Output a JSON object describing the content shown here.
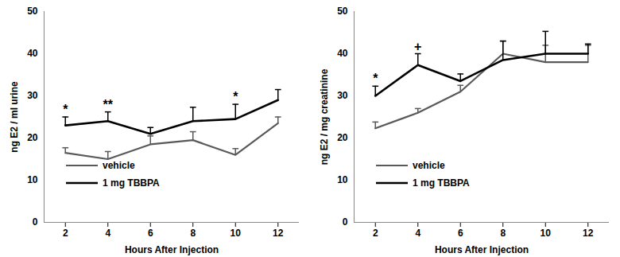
{
  "chart_data": [
    {
      "type": "line",
      "x": [
        2,
        4,
        6,
        8,
        10,
        12
      ],
      "xlabel": "Hours After Injection",
      "ylabel": "ng E2 / ml urine",
      "xlim": [
        1,
        13
      ],
      "xticks": [
        2,
        4,
        6,
        8,
        10,
        12
      ],
      "ylim": [
        0,
        50
      ],
      "yticks": [
        0,
        10,
        20,
        30,
        40,
        50
      ],
      "legend": "lower left",
      "series": [
        {
          "name": "vehicle",
          "color": "#595959",
          "line_style": "solid",
          "values": [
            16.5,
            15,
            18.5,
            19.5,
            16,
            23.5
          ],
          "error": [
            1.2,
            1.8,
            2.0,
            2.0,
            1.5,
            1.5
          ]
        },
        {
          "name": "1 mg TBBPA",
          "color": "#000000",
          "line_style": "solid",
          "values": [
            23,
            24,
            21,
            24,
            24.5,
            29
          ],
          "error": [
            2.0,
            2.2,
            1.5,
            3.3,
            3.5,
            2.5
          ]
        }
      ],
      "annotations": [
        {
          "x": 2,
          "text": "*"
        },
        {
          "x": 4,
          "text": "**"
        },
        {
          "x": 10,
          "text": "*"
        }
      ]
    },
    {
      "type": "line",
      "x": [
        2,
        4,
        6,
        8,
        10,
        12
      ],
      "xlabel": "Hours After Injection",
      "ylabel": "ng E2 / mg creatinine",
      "xlim": [
        1,
        13
      ],
      "xticks": [
        2,
        4,
        6,
        8,
        10,
        12
      ],
      "ylim": [
        0,
        50
      ],
      "yticks": [
        0,
        10,
        20,
        30,
        40,
        50
      ],
      "legend": "lower left",
      "series": [
        {
          "name": "vehicle",
          "color": "#595959",
          "line_style": "solid",
          "values": [
            22.3,
            26,
            31,
            40,
            38,
            38
          ],
          "error": [
            1.5,
            1.0,
            1.5,
            3.0,
            4.0,
            4.0
          ]
        },
        {
          "name": "1 mg TBBPA",
          "color": "#000000",
          "line_style": "solid",
          "values": [
            30,
            37.3,
            33.5,
            38.5,
            40,
            40
          ],
          "error": [
            2.3,
            2.7,
            1.7,
            4.5,
            5.3,
            2.3
          ]
        }
      ],
      "annotations": [
        {
          "x": 2,
          "text": "*"
        },
        {
          "x": 4,
          "text": "+"
        }
      ]
    }
  ]
}
